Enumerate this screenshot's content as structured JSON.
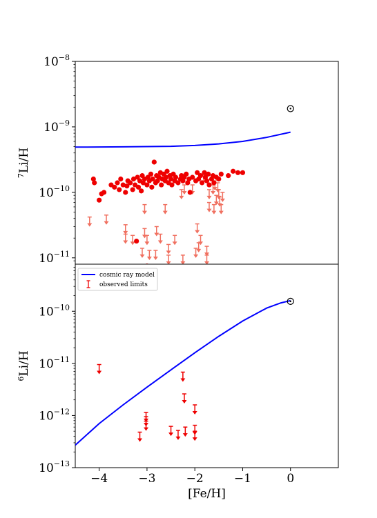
{
  "chart_data": [
    {
      "type": "scatter",
      "panel": "top",
      "xlabel": "",
      "ylabel": "7Li/H",
      "ylabel_parts": {
        "sup": "7",
        "main": "Li/H"
      },
      "yscale": "log",
      "xlim": [
        -4.5,
        1.0
      ],
      "ylim": [
        8e-12,
        1e-08
      ],
      "yticks": [
        {
          "value": 1e-11,
          "base": "10",
          "exp": "−11"
        },
        {
          "value": 1e-10,
          "base": "10",
          "exp": "−10"
        },
        {
          "value": 1e-09,
          "base": "10",
          "exp": "−9"
        },
        {
          "value": 1e-08,
          "base": "10",
          "exp": "−8"
        }
      ],
      "sun_marker": {
        "x": 0.0,
        "y": 1.9e-09
      },
      "model_curve": {
        "color": "#0000ff",
        "x": [
          -4.5,
          -3.5,
          -3.0,
          -2.5,
          -2.0,
          -1.5,
          -1.0,
          -0.5,
          0.0
        ],
        "y": [
          4.9e-10,
          4.95e-10,
          5e-10,
          5.05e-10,
          5.2e-10,
          5.5e-10,
          6e-10,
          6.9e-10,
          8.3e-10
        ]
      },
      "detections": {
        "color": "#ee0000",
        "points": [
          [
            -4.12,
            1.6e-10
          ],
          [
            -4.1,
            1.4e-10
          ],
          [
            -4.0,
            7.6e-11
          ],
          [
            -3.95,
            9.5e-11
          ],
          [
            -3.9,
            1e-10
          ],
          [
            -3.75,
            1.3e-10
          ],
          [
            -3.68,
            1.2e-10
          ],
          [
            -3.62,
            1.4e-10
          ],
          [
            -3.58,
            1.1e-10
          ],
          [
            -3.55,
            1.6e-10
          ],
          [
            -3.5,
            1.3e-10
          ],
          [
            -3.45,
            1e-10
          ],
          [
            -3.42,
            1.25e-10
          ],
          [
            -3.4,
            1.5e-10
          ],
          [
            -3.35,
            1.4e-10
          ],
          [
            -3.3,
            1.1e-10
          ],
          [
            -3.28,
            1.6e-10
          ],
          [
            -3.25,
            1.3e-10
          ],
          [
            -3.2,
            1.7e-10
          ],
          [
            -3.18,
            1.2e-10
          ],
          [
            -3.15,
            1.5e-10
          ],
          [
            -3.12,
            1.05e-10
          ],
          [
            -3.1,
            1.8e-10
          ],
          [
            -3.08,
            1.4e-10
          ],
          [
            -3.05,
            1.6e-10
          ],
          [
            -3.0,
            1.3e-10
          ],
          [
            -2.98,
            1.7e-10
          ],
          [
            -2.95,
            1.5e-10
          ],
          [
            -2.92,
            1.9e-10
          ],
          [
            -2.9,
            1.2e-10
          ],
          [
            -2.88,
            1.6e-10
          ],
          [
            -2.85,
            2.9e-10
          ],
          [
            -2.82,
            1.4e-10
          ],
          [
            -2.8,
            1.8e-10
          ],
          [
            -2.78,
            1.5e-10
          ],
          [
            -2.75,
            1.7e-10
          ],
          [
            -2.72,
            2e-10
          ],
          [
            -2.7,
            1.3e-10
          ],
          [
            -2.68,
            1.6e-10
          ],
          [
            -2.65,
            1.9e-10
          ],
          [
            -2.62,
            1.5e-10
          ],
          [
            -2.6,
            1.7e-10
          ],
          [
            -2.58,
            2.1e-10
          ],
          [
            -2.55,
            1.4e-10
          ],
          [
            -2.52,
            1.8e-10
          ],
          [
            -2.5,
            1.6e-10
          ],
          [
            -2.48,
            1.3e-10
          ],
          [
            -2.45,
            1.9e-10
          ],
          [
            -2.42,
            1.5e-10
          ],
          [
            -2.4,
            1.7e-10
          ],
          [
            -2.35,
            1.4e-10
          ],
          [
            -2.3,
            1.6e-10
          ],
          [
            -2.28,
            1.8e-10
          ],
          [
            -2.25,
            1.5e-10
          ],
          [
            -2.22,
            1.7e-10
          ],
          [
            -2.18,
            1.9e-10
          ],
          [
            -2.15,
            1.4e-10
          ],
          [
            -2.12,
            1.6e-10
          ],
          [
            -2.1,
            1e-10
          ],
          [
            -2.05,
            1.7e-10
          ],
          [
            -1.98,
            1.5e-10
          ],
          [
            -1.95,
            2e-10
          ],
          [
            -1.92,
            1.6e-10
          ],
          [
            -1.88,
            1.8e-10
          ],
          [
            -1.85,
            1.4e-10
          ],
          [
            -1.8,
            2e-10
          ],
          [
            -1.78,
            1.7e-10
          ],
          [
            -1.75,
            1.5e-10
          ],
          [
            -1.72,
            1.9e-10
          ],
          [
            -1.7,
            1.3e-10
          ],
          [
            -1.65,
            1.6e-10
          ],
          [
            -1.62,
            1.8e-10
          ],
          [
            -1.6,
            1.4e-10
          ],
          [
            -1.55,
            1.7e-10
          ],
          [
            -1.5,
            1.6e-10
          ],
          [
            -1.45,
            1.9e-10
          ],
          [
            -1.3,
            1.8e-10
          ],
          [
            -1.2,
            2.1e-10
          ],
          [
            -1.1,
            2e-10
          ],
          [
            -1.0,
            2e-10
          ],
          [
            -3.22,
            1.8e-11
          ],
          [
            -3.0,
            7.5e-12
          ]
        ]
      },
      "upper_limits": {
        "color": "#f07060",
        "points": [
          [
            -4.2,
            4.2e-11
          ],
          [
            -3.85,
            4.5e-11
          ],
          [
            -3.45,
            2.3e-11
          ],
          [
            -3.45,
            3.2e-11
          ],
          [
            -3.3,
            2.2e-11
          ],
          [
            -3.1,
            1.4e-11
          ],
          [
            -3.05,
            2.8e-11
          ],
          [
            -3.05,
            6.5e-11
          ],
          [
            -3.0,
            2.2e-11
          ],
          [
            -2.95,
            1.3e-11
          ],
          [
            -2.82,
            1.3e-11
          ],
          [
            -2.8,
            3e-11
          ],
          [
            -2.72,
            2.3e-11
          ],
          [
            -2.62,
            6.5e-11
          ],
          [
            -2.55,
            1.6e-11
          ],
          [
            -2.55,
            1.1e-11
          ],
          [
            -2.42,
            2.2e-11
          ],
          [
            -2.28,
            1.1e-10
          ],
          [
            -2.25,
            1.9e-10
          ],
          [
            -2.22,
            1.3e-10
          ],
          [
            -2.25,
            1.1e-11
          ],
          [
            -2.05,
            1.3e-10
          ],
          [
            -1.98,
            1.4e-11
          ],
          [
            -1.95,
            3.3e-11
          ],
          [
            -1.92,
            1.7e-11
          ],
          [
            -1.88,
            2.2e-11
          ],
          [
            -1.82,
            1.9e-10
          ],
          [
            -1.75,
            1.1e-11
          ],
          [
            -1.75,
            1.5e-11
          ],
          [
            -1.7,
            7e-11
          ],
          [
            -1.7,
            1.1e-10
          ],
          [
            -1.62,
            1.3e-10
          ],
          [
            -1.6,
            6.5e-11
          ],
          [
            -1.58,
            1.5e-10
          ],
          [
            -1.55,
            9e-11
          ],
          [
            -1.52,
            1.4e-10
          ],
          [
            -1.5,
            1.1e-10
          ],
          [
            -1.48,
            8.5e-11
          ],
          [
            -1.45,
            6.5e-11
          ],
          [
            -1.42,
            1e-10
          ]
        ]
      }
    },
    {
      "type": "scatter",
      "panel": "bottom",
      "xlabel": "[Fe/H]",
      "ylabel": "6Li/H",
      "ylabel_parts": {
        "sup": "6",
        "main": "Li/H"
      },
      "yscale": "log",
      "xlim": [
        -4.5,
        1.0
      ],
      "ylim": [
        1e-13,
        8e-10
      ],
      "xticks": [
        {
          "value": -4,
          "label": "−4"
        },
        {
          "value": -3,
          "label": "−3"
        },
        {
          "value": -2,
          "label": "−2"
        },
        {
          "value": -1,
          "label": "−1"
        },
        {
          "value": 0,
          "label": "0"
        }
      ],
      "yticks": [
        {
          "value": 1e-13,
          "base": "10",
          "exp": "−13"
        },
        {
          "value": 1e-12,
          "base": "10",
          "exp": "−12"
        },
        {
          "value": 1e-11,
          "base": "10",
          "exp": "−11"
        },
        {
          "value": 1e-10,
          "base": "10",
          "exp": "−10"
        }
      ],
      "sun_marker": {
        "x": 0.0,
        "y": 1.55e-10
      },
      "model_curve": {
        "color": "#0000ff",
        "x": [
          -4.5,
          -4.0,
          -3.5,
          -3.0,
          -2.5,
          -2.0,
          -1.5,
          -1.0,
          -0.5,
          -0.2,
          0.0
        ],
        "y": [
          2.7e-13,
          7e-13,
          1.6e-12,
          3.5e-12,
          7.5e-12,
          1.6e-11,
          3.3e-11,
          6.5e-11,
          1.15e-10,
          1.45e-10,
          1.6e-10
        ]
      },
      "upper_limits": {
        "color": "#ee0000",
        "points": [
          [
            -4.0,
            9.5e-12
          ],
          [
            -3.15,
            4.8e-13
          ],
          [
            -3.02,
            1.15e-12
          ],
          [
            -3.02,
            9.5e-13
          ],
          [
            -3.02,
            7.8e-13
          ],
          [
            -2.5,
            6.2e-13
          ],
          [
            -2.35,
            5.2e-13
          ],
          [
            -2.25,
            6.8e-12
          ],
          [
            -2.22,
            2.6e-12
          ],
          [
            -2.2,
            6e-13
          ],
          [
            -2.0,
            1.6e-12
          ],
          [
            -2.0,
            6.5e-13
          ],
          [
            -2.0,
            5e-13
          ]
        ]
      },
      "legend": {
        "position": "upper left",
        "entries": [
          {
            "label": "cosmic ray model",
            "kind": "line",
            "color": "#0000ff"
          },
          {
            "label": "observed limits",
            "kind": "errorbar",
            "color": "#ee0000"
          }
        ]
      }
    }
  ]
}
